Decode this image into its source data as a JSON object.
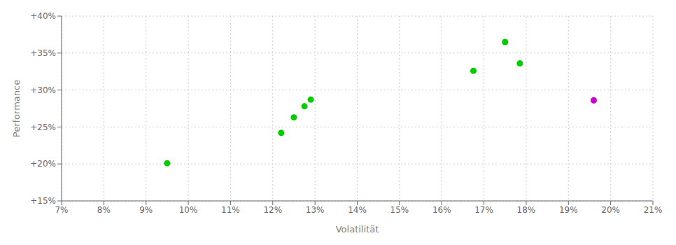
{
  "chart_data": {
    "type": "scatter",
    "xlabel": "Volatilität",
    "ylabel": "Performance",
    "x": [
      0.095,
      0.122,
      0.125,
      0.1275,
      0.129,
      0.1675,
      0.175,
      0.1785,
      0.196
    ],
    "values": [
      0.201,
      0.242,
      0.263,
      0.278,
      0.287,
      0.326,
      0.365,
      0.336,
      0.286
    ],
    "colors": [
      "#00cc00",
      "#00cc00",
      "#00cc00",
      "#00cc00",
      "#00cc00",
      "#00cc00",
      "#00cc00",
      "#00cc00",
      "#cc00cc"
    ],
    "xlim": [
      0.07,
      0.21
    ],
    "ylim": [
      0.15,
      0.4
    ],
    "xticks": [
      {
        "value": 0.07,
        "label": "7%"
      },
      {
        "value": 0.08,
        "label": "8%"
      },
      {
        "value": 0.09,
        "label": "9%"
      },
      {
        "value": 0.1,
        "label": "10%"
      },
      {
        "value": 0.11,
        "label": "11%"
      },
      {
        "value": 0.12,
        "label": "12%"
      },
      {
        "value": 0.13,
        "label": "13%"
      },
      {
        "value": 0.14,
        "label": "14%"
      },
      {
        "value": 0.15,
        "label": "15%"
      },
      {
        "value": 0.16,
        "label": "16%"
      },
      {
        "value": 0.17,
        "label": "17%"
      },
      {
        "value": 0.18,
        "label": "18%"
      },
      {
        "value": 0.19,
        "label": "19%"
      },
      {
        "value": 0.2,
        "label": "20%"
      },
      {
        "value": 0.21,
        "label": "21%"
      }
    ],
    "yticks": [
      {
        "value": 0.15,
        "label": "+15%"
      },
      {
        "value": 0.2,
        "label": "+20%"
      },
      {
        "value": 0.25,
        "label": "+25%"
      },
      {
        "value": 0.3,
        "label": "+30%"
      },
      {
        "value": 0.35,
        "label": "+35%"
      },
      {
        "value": 0.4,
        "label": "+40%"
      }
    ],
    "grid": true
  }
}
